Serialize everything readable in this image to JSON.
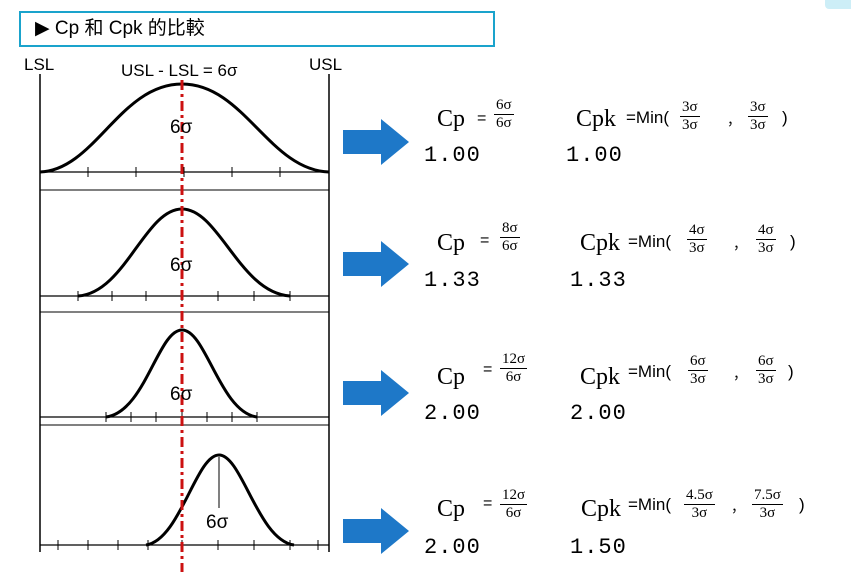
{
  "title": "▶ Cp 和 Cpk 的比較",
  "labels": {
    "lsl": "LSL",
    "usl": "USL",
    "spec_width": "USL - LSL = 6σ"
  },
  "colors": {
    "arrow": "#1e78c8",
    "centerline": "#cc1111",
    "title_border": "#1aa3cc"
  },
  "rows": [
    {
      "sigma_label": "6σ",
      "cp_label": "Cp",
      "cp_num": "6σ",
      "cp_den": "6σ",
      "cpk_label": "Cpk",
      "min_label": "=Min(",
      "cpk_a_num": "3σ",
      "cpk_a_den": "3σ",
      "cpk_b_num": "3σ",
      "cpk_b_den": "3σ",
      "close": ")",
      "cp_value": "1.00",
      "cpk_value": "1.00"
    },
    {
      "sigma_label": "6σ",
      "cp_label": "Cp",
      "cp_num": "8σ",
      "cp_den": "6σ",
      "cpk_label": "Cpk",
      "min_label": "=Min(",
      "cpk_a_num": "4σ",
      "cpk_a_den": "3σ",
      "cpk_b_num": "4σ",
      "cpk_b_den": "3σ",
      "close": ")",
      "cp_value": "1.33",
      "cpk_value": "1.33"
    },
    {
      "sigma_label": "6σ",
      "cp_label": "Cp",
      "cp_num": "12σ",
      "cp_den": "6σ",
      "cpk_label": "Cpk",
      "min_label": "=Min(",
      "cpk_a_num": "6σ",
      "cpk_a_den": "3σ",
      "cpk_b_num": "6σ",
      "cpk_b_den": "3σ",
      "close": ")",
      "cp_value": "2.00",
      "cpk_value": "2.00"
    },
    {
      "sigma_label": "6σ",
      "cp_label": "Cp",
      "cp_num": "12σ",
      "cp_den": "6σ",
      "cpk_label": "Cpk",
      "min_label": "=Min(",
      "cpk_a_num": "4.5σ",
      "cpk_a_den": "3σ",
      "cpk_b_num": "7.5σ",
      "cpk_b_den": "3σ",
      "close": ")",
      "cp_value": "2.00",
      "cpk_value": "1.50"
    }
  ]
}
